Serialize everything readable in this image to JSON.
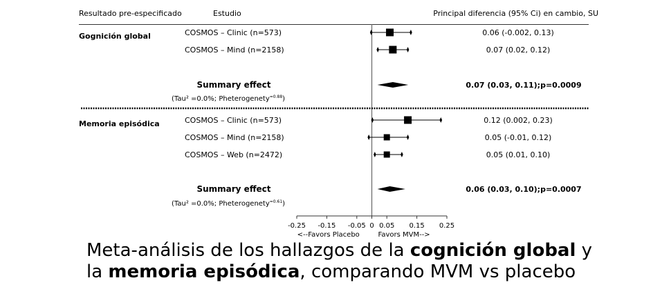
{
  "chart_data": {
    "type": "forest",
    "headers": {
      "outcome": "Resultado pre-especificado",
      "study": "Estudio",
      "effect": "Principal diferencia (95% Ci) en cambio, SU"
    },
    "groups": [
      {
        "name": "Gognición global",
        "studies": [
          {
            "label": "COSMOS – Clinic (n=573)",
            "est": 0.06,
            "lo": -0.002,
            "hi": 0.13,
            "text": "0.06 (-0.002, 0.13)"
          },
          {
            "label": "COSMOS – Mind (n=2158)",
            "est": 0.07,
            "lo": 0.02,
            "hi": 0.12,
            "text": "0.07 (0.02, 0.12)"
          }
        ],
        "summary": {
          "label": "Summary effect",
          "est": 0.07,
          "lo": 0.03,
          "hi": 0.11,
          "text": "0.07 (0.03, 0.11);p=0.0009"
        },
        "heterogeneity": {
          "prefix": "(Tau² =0.0%; Pheterogenety",
          "sup": "=0.88",
          "suffix": ")"
        }
      },
      {
        "name": "Memoria episódica",
        "studies": [
          {
            "label": "COSMOS – Clinic (n=573)",
            "est": 0.12,
            "lo": 0.002,
            "hi": 0.23,
            "text": "0.12 (0.002, 0.23)"
          },
          {
            "label": "COSMOS – Mind (n=2158)",
            "est": 0.05,
            "lo": -0.01,
            "hi": 0.12,
            "text": "0.05 (-0.01, 0.12)"
          },
          {
            "label": "COSMOS – Web (n=2472)",
            "est": 0.05,
            "lo": 0.01,
            "hi": 0.1,
            "text": "0.05 (0.01, 0.10)"
          }
        ],
        "summary": {
          "label": "Summary effect",
          "est": 0.06,
          "lo": 0.03,
          "hi": 0.1,
          "text": "0.06 (0.03, 0.10);p=0.0007"
        },
        "heterogeneity": {
          "prefix": "(Tau² =0.0%; Pheterogenety",
          "sup": "=0.61",
          "suffix": ")"
        }
      }
    ],
    "xlim": [
      -0.25,
      0.25
    ],
    "xticks": [
      "-0.25",
      "-0.15",
      "-0.05",
      "0",
      "0.05",
      "0.15",
      "0.25"
    ],
    "xlabel_left": "<--Favors Placebo",
    "xlabel_right": "Favors MVM-->"
  },
  "caption": {
    "line1_pre": "Meta-análisis de los hallazgos de la ",
    "line1_bold": "cognición global",
    "line1_post": " y",
    "line2_pre": "la ",
    "line2_bold": "memoria episódica",
    "line2_post": ", comparando MVM vs placebo"
  }
}
